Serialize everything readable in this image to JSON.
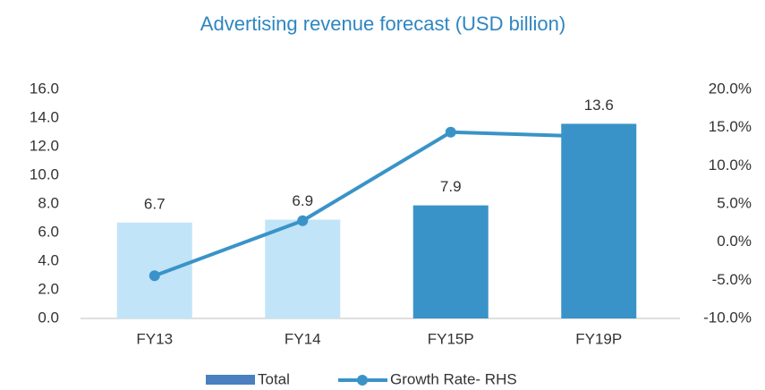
{
  "chart_data": {
    "type": "bar_line",
    "title": "Advertising revenue forecast (USD billion)",
    "categories": [
      "FY13",
      "FY14",
      "FY15P",
      "FY19P"
    ],
    "series": [
      {
        "name": "Total",
        "type": "bar",
        "color": "#4a7fc0",
        "colors": [
          "#c2e4f8",
          "#c2e4f8",
          "#3a93c8",
          "#3a93c8"
        ],
        "values": [
          6.7,
          6.9,
          7.9,
          13.6
        ]
      },
      {
        "name": "Growth Rate- RHS",
        "type": "line",
        "axis": "y2",
        "color": "#3a93c8",
        "values": [
          -4.4,
          2.8,
          14.4,
          13.8
        ]
      }
    ],
    "ylim": [
      0,
      16
    ],
    "yticks": [
      {
        "value": 0,
        "label": "0.0"
      },
      {
        "value": 2,
        "label": "2.0"
      },
      {
        "value": 4,
        "label": "4.0"
      },
      {
        "value": 6,
        "label": "6.0"
      },
      {
        "value": 8,
        "label": "8.0"
      },
      {
        "value": 10,
        "label": "10.0"
      },
      {
        "value": 12,
        "label": "12.0"
      },
      {
        "value": 14,
        "label": "14.0"
      },
      {
        "value": 16,
        "label": "16.0"
      }
    ],
    "y2lim": [
      -10,
      20
    ],
    "y2ticks": [
      {
        "value": -10,
        "label": "-10.0%"
      },
      {
        "value": -5,
        "label": "-5.0%"
      },
      {
        "value": 0,
        "label": "0.0%"
      },
      {
        "value": 5,
        "label": "5.0%"
      },
      {
        "value": 10,
        "label": "10.0%"
      },
      {
        "value": 15,
        "label": "15.0%"
      },
      {
        "value": 20,
        "label": "20.0%"
      }
    ],
    "grid": false,
    "legend": "bottom"
  }
}
